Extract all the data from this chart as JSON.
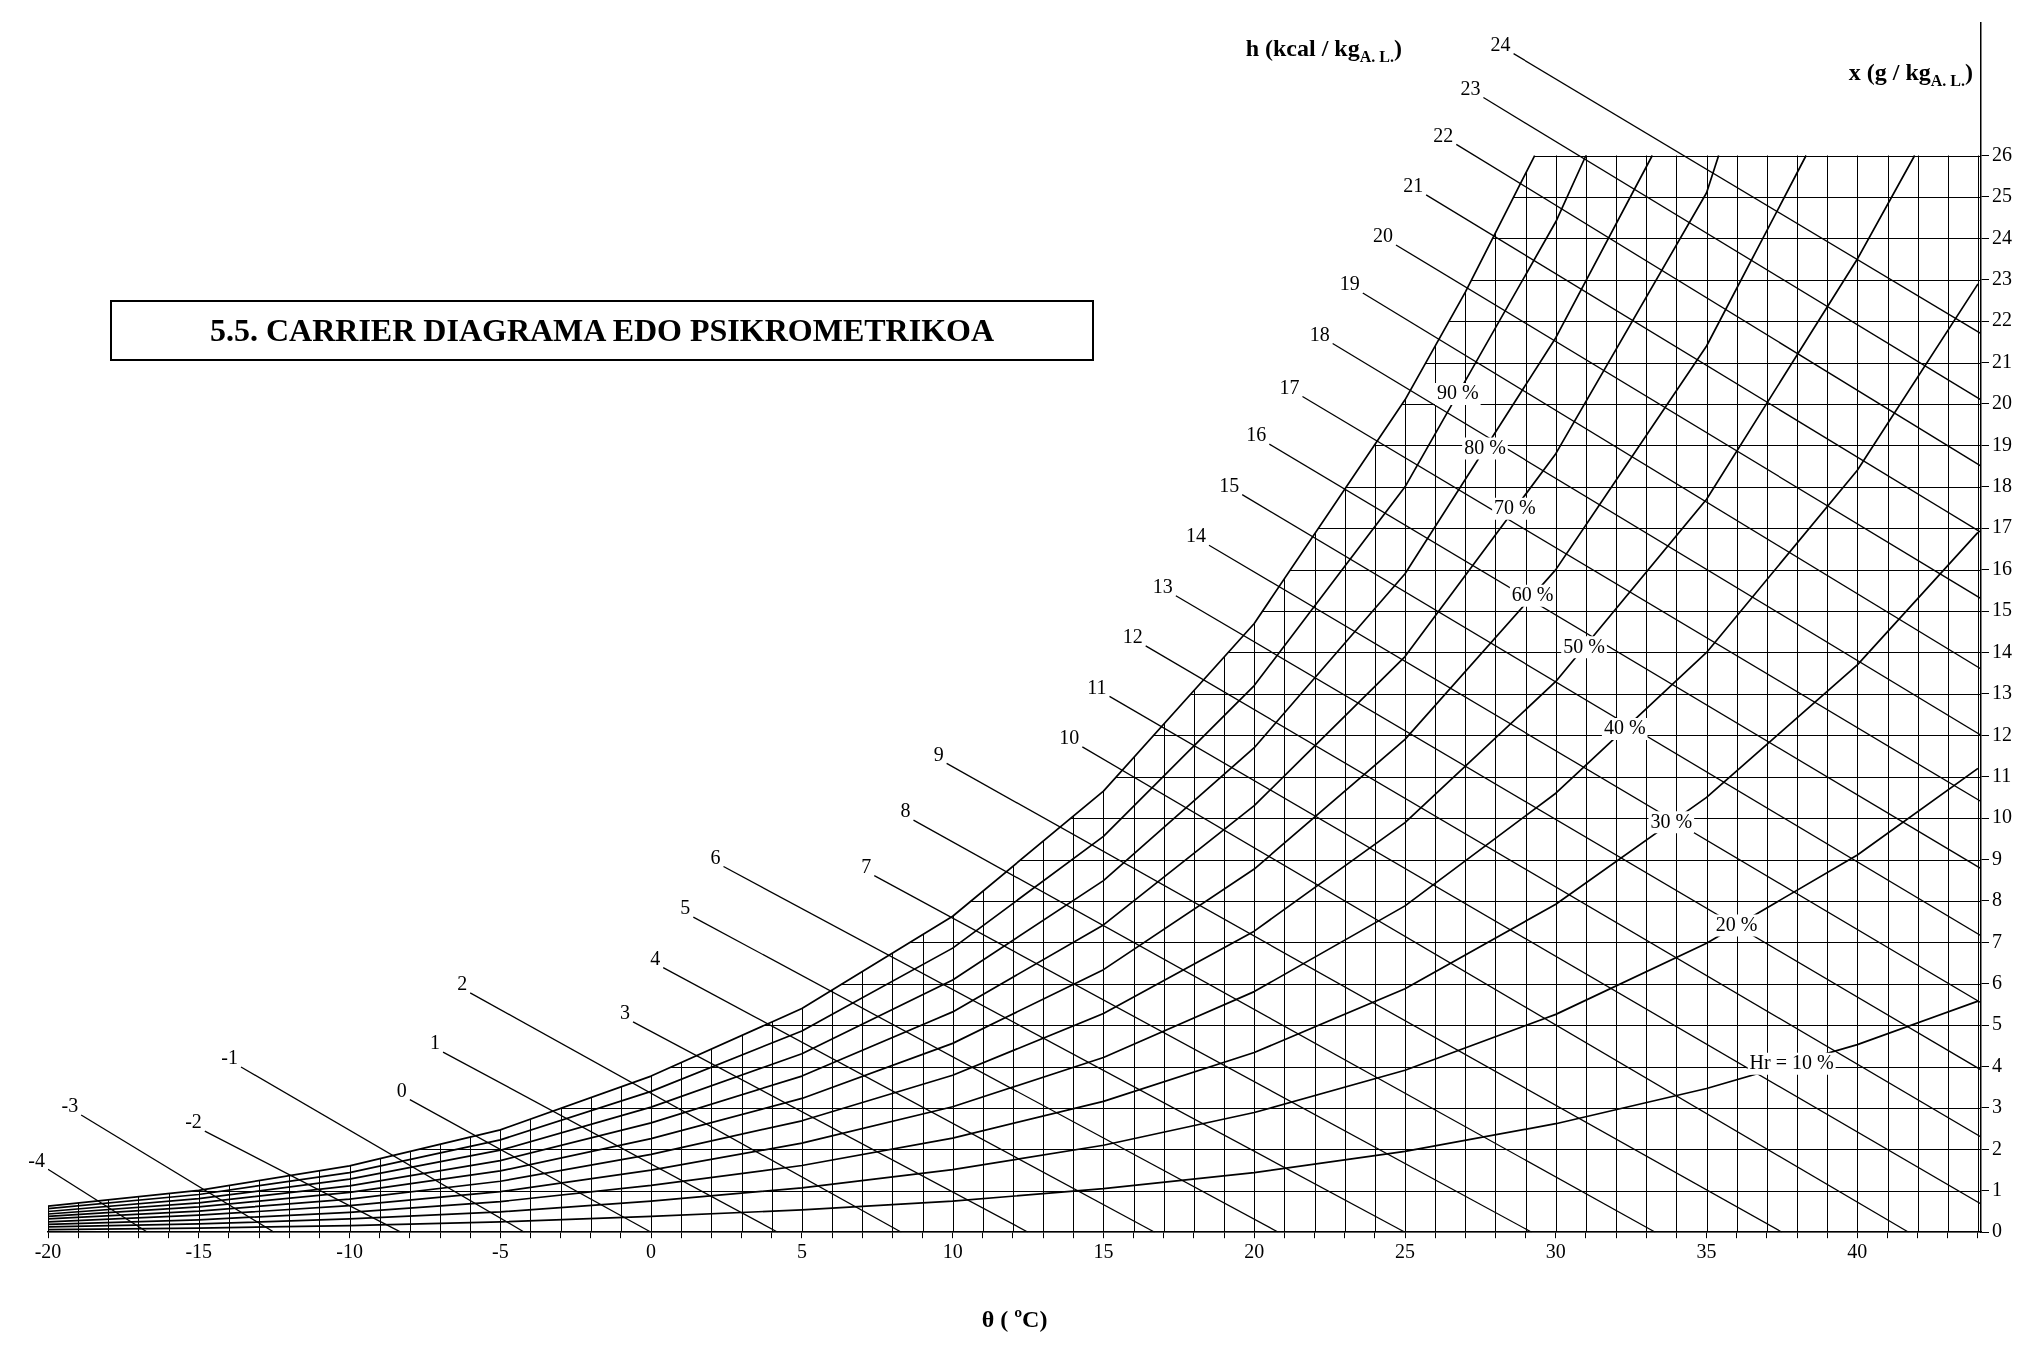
{
  "chart_data": {
    "type": "line",
    "title": "5.5. CARRIER DIAGRAMA EDO PSIKROMETRIKOA",
    "xlabel": "θ ( ºC)",
    "ylabel": "x (g / kg$_{A. L.}$)",
    "annotations": [
      "h (kcal / kg$_{A. L.}$)"
    ],
    "xlim": [
      -20,
      44.1
    ],
    "ylim": [
      0,
      29.2
    ],
    "xticks": [
      -20,
      {
        "value": -19,
        "label": null
      },
      {
        "value": -18,
        "label": null
      },
      {
        "value": -17,
        "label": null
      },
      {
        "value": -16,
        "label": null
      },
      -15,
      {
        "value": -14,
        "label": null
      },
      {
        "value": -13,
        "label": null
      },
      {
        "value": -12,
        "label": null
      },
      {
        "value": -11,
        "label": null
      },
      -10,
      {
        "value": -9,
        "label": null
      },
      {
        "value": -8,
        "label": null
      },
      {
        "value": -7,
        "label": null
      },
      {
        "value": -6,
        "label": null
      },
      -5,
      {
        "value": -4,
        "label": null
      },
      {
        "value": -3,
        "label": null
      },
      {
        "value": -2,
        "label": null
      },
      {
        "value": -1,
        "label": null
      },
      0,
      {
        "value": 1,
        "label": null
      },
      {
        "value": 2,
        "label": null
      },
      {
        "value": 3,
        "label": null
      },
      {
        "value": 4,
        "label": null
      },
      5,
      {
        "value": 6,
        "label": null
      },
      {
        "value": 7,
        "label": null
      },
      {
        "value": 8,
        "label": null
      },
      {
        "value": 9,
        "label": null
      },
      10,
      {
        "value": 11,
        "label": null
      },
      {
        "value": 12,
        "label": null
      },
      {
        "value": 13,
        "label": null
      },
      {
        "value": 14,
        "label": null
      },
      15,
      {
        "value": 16,
        "label": null
      },
      {
        "value": 17,
        "label": null
      },
      {
        "value": 18,
        "label": null
      },
      {
        "value": 19,
        "label": null
      },
      20,
      {
        "value": 21,
        "label": null
      },
      {
        "value": 22,
        "label": null
      },
      {
        "value": 23,
        "label": null
      },
      {
        "value": 24,
        "label": null
      },
      25,
      {
        "value": 26,
        "label": null
      },
      {
        "value": 27,
        "label": null
      },
      {
        "value": 28,
        "label": null
      },
      {
        "value": 29,
        "label": null
      },
      30,
      {
        "value": 31,
        "label": null
      },
      {
        "value": 32,
        "label": null
      },
      {
        "value": 33,
        "label": null
      },
      {
        "value": 34,
        "label": null
      },
      35,
      {
        "value": 36,
        "label": null
      },
      {
        "value": 37,
        "label": null
      },
      {
        "value": 38,
        "label": null
      },
      {
        "value": 39,
        "label": null
      },
      40,
      {
        "value": 41,
        "label": null
      },
      {
        "value": 42,
        "label": null
      },
      {
        "value": 43,
        "label": null
      },
      {
        "value": 44,
        "label": null
      }
    ],
    "yticks": [
      0,
      1,
      2,
      3,
      4,
      5,
      6,
      7,
      8,
      9,
      10,
      11,
      12,
      13,
      14,
      15,
      16,
      17,
      18,
      19,
      20,
      21,
      22,
      23,
      24,
      25,
      26
    ],
    "grid": true,
    "legend": false,
    "marker": "none",
    "line_style": "solid",
    "series": [
      {
        "color": "#000000",
        "x": [
          -20,
          -15,
          -10,
          -5,
          0,
          5,
          10,
          15,
          20,
          25,
          27,
          29.3
        ],
        "values": [
          0.63,
          1.01,
          1.6,
          2.47,
          3.77,
          5.4,
          7.63,
          10.65,
          14.7,
          20.1,
          22.7,
          26
        ]
      },
      {
        "name": "90 %",
        "color": "#000000",
        "x": [
          -20,
          -15,
          -10,
          -5,
          0,
          5,
          10,
          15,
          20,
          25,
          30,
          31
        ],
        "values": [
          0.57,
          0.91,
          1.44,
          2.23,
          3.4,
          4.86,
          6.86,
          9.56,
          13.2,
          18,
          24.4,
          26
        ]
      },
      {
        "name": "80 %",
        "color": "#000000",
        "x": [
          -20,
          -15,
          -10,
          -5,
          0,
          5,
          10,
          15,
          20,
          25,
          30,
          33.2
        ],
        "values": [
          0.5,
          0.81,
          1.28,
          1.98,
          3.02,
          4.31,
          6.09,
          8.49,
          11.7,
          15.9,
          21.6,
          26
        ]
      },
      {
        "name": "70 %",
        "color": "#000000",
        "x": [
          -20,
          -15,
          -10,
          -5,
          0,
          5,
          10,
          15,
          20,
          25,
          30,
          35,
          35.4
        ],
        "values": [
          0.44,
          0.71,
          1.12,
          1.73,
          2.64,
          3.77,
          5.32,
          7.42,
          10.3,
          13.9,
          18.8,
          25.1,
          26
        ]
      },
      {
        "name": "60 %",
        "color": "#000000",
        "x": [
          -20,
          -15,
          -10,
          -5,
          0,
          5,
          10,
          15,
          20,
          25,
          30,
          35,
          38.3
        ],
        "values": [
          0.38,
          0.61,
          0.96,
          1.48,
          2.26,
          3.23,
          4.56,
          6.34,
          8.77,
          11.9,
          16,
          21.4,
          26
        ]
      },
      {
        "name": "50 %",
        "color": "#000000",
        "x": [
          -20,
          -15,
          -10,
          -5,
          0,
          5,
          10,
          15,
          20,
          25,
          30,
          35,
          40,
          41.9
        ],
        "values": [
          0.32,
          0.51,
          0.8,
          1.23,
          1.88,
          2.69,
          3.79,
          5.28,
          7.27,
          9.89,
          13.3,
          17.7,
          23.5,
          26
        ]
      },
      {
        "name": "40 %",
        "color": "#000000",
        "x": [
          -20,
          -15,
          -10,
          -5,
          0,
          5,
          10,
          15,
          20,
          25,
          30,
          35,
          40,
          44
        ],
        "values": [
          0.25,
          0.41,
          0.64,
          0.98,
          1.5,
          2.15,
          3.03,
          4.22,
          5.81,
          7.88,
          10.6,
          14,
          18.4,
          22.9
        ]
      },
      {
        "name": "30 %",
        "color": "#000000",
        "x": [
          -20,
          -15,
          -10,
          -5,
          0,
          5,
          10,
          15,
          20,
          25,
          30,
          35,
          40,
          44
        ],
        "values": [
          0.19,
          0.3,
          0.48,
          0.74,
          1.13,
          1.61,
          2.27,
          3.16,
          4.34,
          5.88,
          7.92,
          10.5,
          13.7,
          16.9
        ]
      },
      {
        "name": "20 %",
        "color": "#000000",
        "x": [
          -20,
          -15,
          -10,
          -5,
          0,
          5,
          10,
          15,
          20,
          25,
          30,
          35,
          40,
          44
        ],
        "values": [
          0.13,
          0.2,
          0.32,
          0.49,
          0.75,
          1.07,
          1.51,
          2.1,
          2.89,
          3.91,
          5.26,
          6.98,
          9.11,
          11.2
        ]
      },
      {
        "name": "Hr = 10 %",
        "color": "#000000",
        "x": [
          -20,
          -15,
          -10,
          -5,
          0,
          5,
          10,
          15,
          20,
          25,
          30,
          35,
          40,
          44
        ],
        "values": [
          0.06,
          0.1,
          0.16,
          0.25,
          0.38,
          0.54,
          0.75,
          1.05,
          1.44,
          1.95,
          2.62,
          3.47,
          4.53,
          5.58
        ]
      },
      {
        "name": "-4",
        "color": "#000000",
        "x": [
          -20,
          -16.7
        ],
        "values": [
          1.52,
          0
        ]
      },
      {
        "name": "-3",
        "color": "#000000",
        "x": [
          -18.9,
          -12.5
        ],
        "values": [
          2.83,
          0
        ]
      },
      {
        "name": "-2",
        "color": "#000000",
        "x": [
          -14.8,
          -8.3
        ],
        "values": [
          2.44,
          0
        ]
      },
      {
        "name": "-1",
        "color": "#000000",
        "x": [
          -13.6,
          -4.2
        ],
        "values": [
          3.99,
          0
        ]
      },
      {
        "name": "0",
        "color": "#000000",
        "x": [
          -8,
          0
        ],
        "values": [
          3.2,
          0
        ]
      },
      {
        "name": "1",
        "color": "#000000",
        "x": [
          -6.9,
          4.2
        ],
        "values": [
          4.35,
          0
        ]
      },
      {
        "name": "2",
        "color": "#000000",
        "x": [
          -6,
          8.3
        ],
        "values": [
          5.78,
          0
        ]
      },
      {
        "name": "3",
        "color": "#000000",
        "x": [
          -0.6,
          12.5
        ],
        "values": [
          5.08,
          0
        ]
      },
      {
        "name": "4",
        "color": "#000000",
        "x": [
          0.4,
          16.7
        ],
        "values": [
          6.39,
          0
        ]
      },
      {
        "name": "5",
        "color": "#000000",
        "x": [
          1.4,
          20.8
        ],
        "values": [
          7.61,
          0
        ]
      },
      {
        "name": "6",
        "color": "#000000",
        "x": [
          2.4,
          25
        ],
        "values": [
          8.83,
          0
        ]
      },
      {
        "name": "7",
        "color": "#000000",
        "x": [
          7.4,
          29.2
        ],
        "values": [
          8.61,
          0
        ]
      },
      {
        "name": "8",
        "color": "#000000",
        "x": [
          8.7,
          33.3
        ],
        "values": [
          9.95,
          0
        ]
      },
      {
        "name": "9",
        "color": "#000000",
        "x": [
          9.8,
          37.5
        ],
        "values": [
          11.32,
          0
        ]
      },
      {
        "name": "10",
        "color": "#000000",
        "x": [
          14.3,
          41.7
        ],
        "values": [
          11.72,
          0
        ]
      },
      {
        "name": "11",
        "color": "#000000",
        "x": [
          15.2,
          44.1
        ],
        "values": [
          12.94,
          0.68
        ]
      },
      {
        "name": "12",
        "color": "#000000",
        "x": [
          16.4,
          44.1
        ],
        "values": [
          14.16,
          2.3
        ]
      },
      {
        "name": "13",
        "color": "#000000",
        "x": [
          17.4,
          44.1
        ],
        "values": [
          15.37,
          3.92
        ]
      },
      {
        "name": "14",
        "color": "#000000",
        "x": [
          18.5,
          44.1
        ],
        "values": [
          16.59,
          5.54
        ]
      },
      {
        "name": "15",
        "color": "#000000",
        "x": [
          19.6,
          44.1
        ],
        "values": [
          17.81,
          7.16
        ]
      },
      {
        "name": "16",
        "color": "#000000",
        "x": [
          20.5,
          44.1
        ],
        "values": [
          19.03,
          8.78
        ]
      },
      {
        "name": "17",
        "color": "#000000",
        "x": [
          21.6,
          44.1
        ],
        "values": [
          20.18,
          10.4
        ]
      },
      {
        "name": "18",
        "color": "#000000",
        "x": [
          22.6,
          44.1
        ],
        "values": [
          21.46,
          12
        ]
      },
      {
        "name": "19",
        "color": "#000000",
        "x": [
          23.6,
          44.1
        ],
        "values": [
          22.68,
          13.6
        ]
      },
      {
        "name": "20",
        "color": "#000000",
        "x": [
          24.7,
          44.1
        ],
        "values": [
          23.84,
          15.3
        ]
      },
      {
        "name": "21",
        "color": "#000000",
        "x": [
          25.7,
          44.1
        ],
        "values": [
          25.05,
          16.9
        ]
      },
      {
        "name": "22",
        "color": "#000000",
        "x": [
          26.7,
          44.1
        ],
        "values": [
          26.27,
          18.5
        ]
      },
      {
        "name": "23",
        "color": "#000000",
        "x": [
          27.6,
          44.1
        ],
        "values": [
          27.4,
          20.1
        ]
      },
      {
        "name": "24",
        "color": "#000000",
        "x": [
          28.6,
          44.1
        ],
        "values": [
          28.46,
          21.7
        ]
      }
    ]
  }
}
